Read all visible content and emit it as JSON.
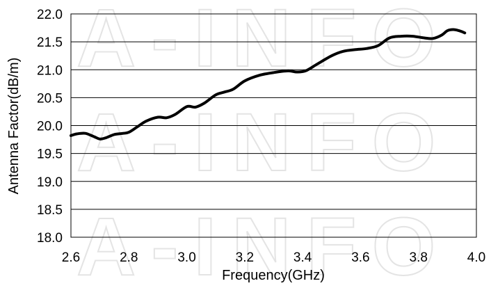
{
  "watermark": {
    "text": "A-INFO"
  },
  "chart_data": {
    "type": "line",
    "title": "",
    "xlabel": "Frequency(GHz)",
    "ylabel": "Antenna Factor(dB/m)",
    "xlim": [
      2.6,
      4.0
    ],
    "ylim": [
      18.0,
      22.0
    ],
    "x_ticks": [
      "2.6",
      "2.8",
      "3.0",
      "3.2",
      "3.4",
      "3.6",
      "3.8",
      "4.0"
    ],
    "y_ticks": [
      "18.0",
      "18.5",
      "19.0",
      "19.5",
      "20.0",
      "20.5",
      "21.0",
      "21.5",
      "22.0"
    ],
    "grid": "horizontal",
    "legend": "none",
    "line_color": "#000000",
    "series": [
      {
        "x": [
          2.6,
          2.62,
          2.65,
          2.68,
          2.7,
          2.72,
          2.75,
          2.78,
          2.8,
          2.83,
          2.86,
          2.9,
          2.93,
          2.96,
          3.0,
          3.03,
          3.06,
          3.1,
          3.13,
          3.16,
          3.2,
          3.25,
          3.3,
          3.35,
          3.38,
          3.41,
          3.45,
          3.5,
          3.54,
          3.58,
          3.62,
          3.66,
          3.7,
          3.74,
          3.78,
          3.82,
          3.85,
          3.88,
          3.9,
          3.92,
          3.94,
          3.96
        ],
        "y": [
          19.82,
          19.85,
          19.86,
          19.8,
          19.76,
          19.78,
          19.84,
          19.86,
          19.88,
          19.98,
          20.08,
          20.15,
          20.14,
          20.2,
          20.34,
          20.33,
          20.4,
          20.55,
          20.6,
          20.65,
          20.8,
          20.9,
          20.95,
          20.98,
          20.96,
          20.98,
          21.1,
          21.25,
          21.33,
          21.36,
          21.38,
          21.43,
          21.57,
          21.6,
          21.6,
          21.57,
          21.56,
          21.62,
          21.7,
          21.72,
          21.7,
          21.66
        ]
      }
    ]
  }
}
